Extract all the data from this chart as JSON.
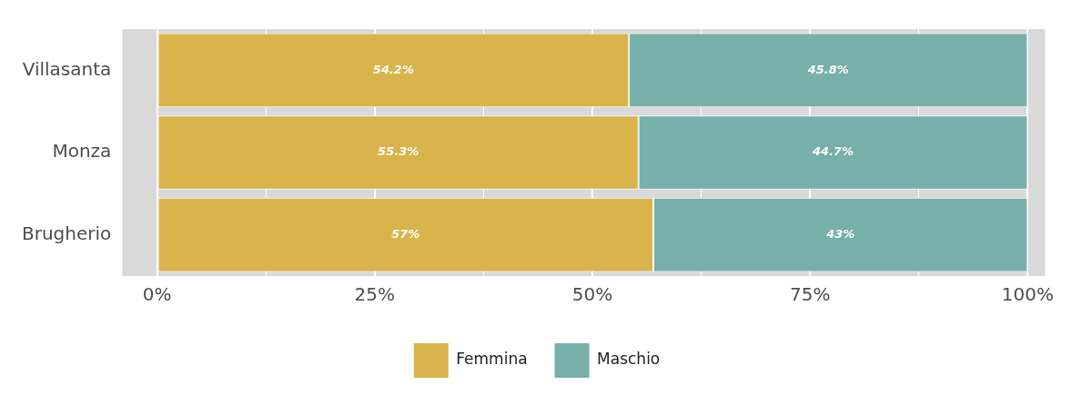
{
  "chart_data": {
    "type": "bar",
    "orientation": "horizontal",
    "stacked": true,
    "categories": [
      "Villasanta",
      "Monza",
      "Brugherio"
    ],
    "series": [
      {
        "name": "Femmina",
        "color": "#d9b44a",
        "values": [
          54.2,
          55.3,
          57
        ],
        "value_labels": [
          "54.2%",
          "55.3%",
          "57%"
        ]
      },
      {
        "name": "Maschio",
        "color": "#76b0a8",
        "values": [
          45.8,
          44.7,
          43
        ],
        "value_labels": [
          "45.8%",
          "44.7%",
          "43%"
        ]
      }
    ],
    "xlim": [
      -4,
      102
    ],
    "xticks": [
      {
        "value": 0,
        "label": "0%"
      },
      {
        "value": 12.5,
        "label": null
      },
      {
        "value": 25,
        "label": "25%"
      },
      {
        "value": 37.5,
        "label": null
      },
      {
        "value": 50,
        "label": "50%"
      },
      {
        "value": 62.5,
        "label": null
      },
      {
        "value": 75,
        "label": "75%"
      },
      {
        "value": 87.5,
        "label": null
      },
      {
        "value": 100,
        "label": "100%"
      }
    ],
    "grid": "x",
    "legend": "bottom"
  }
}
